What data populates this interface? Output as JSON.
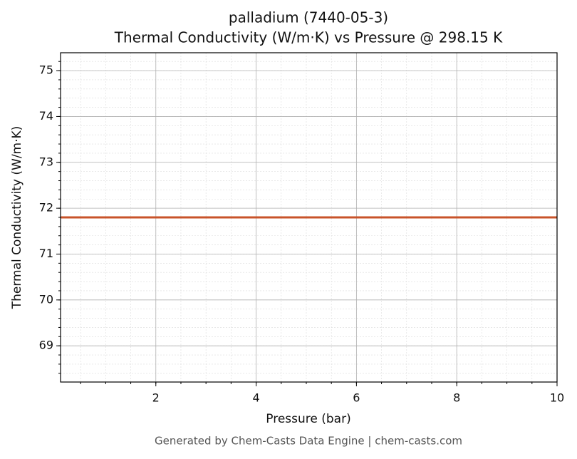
{
  "chart_data": {
    "type": "line",
    "title": "palladium (7440-05-3)",
    "subtitle": "Thermal Conductivity (W/m·K) vs Pressure @ 298.15 K",
    "xlabel": "Pressure (bar)",
    "ylabel": "Thermal Conductivity (W/m·K)",
    "footer": "Generated by Chem-Casts Data Engine | chem-casts.com",
    "x": [
      0.1,
      10
    ],
    "series": [
      {
        "name": "palladium",
        "color": "#c8532a",
        "values": [
          71.8,
          71.8
        ]
      }
    ],
    "xlim": [
      0.1,
      10
    ],
    "xticks": [
      2,
      4,
      6,
      8,
      10
    ],
    "ylim": [
      68.21,
      75.39
    ],
    "yticks": [
      69,
      70,
      71,
      72,
      73,
      74,
      75
    ],
    "grid": true
  }
}
